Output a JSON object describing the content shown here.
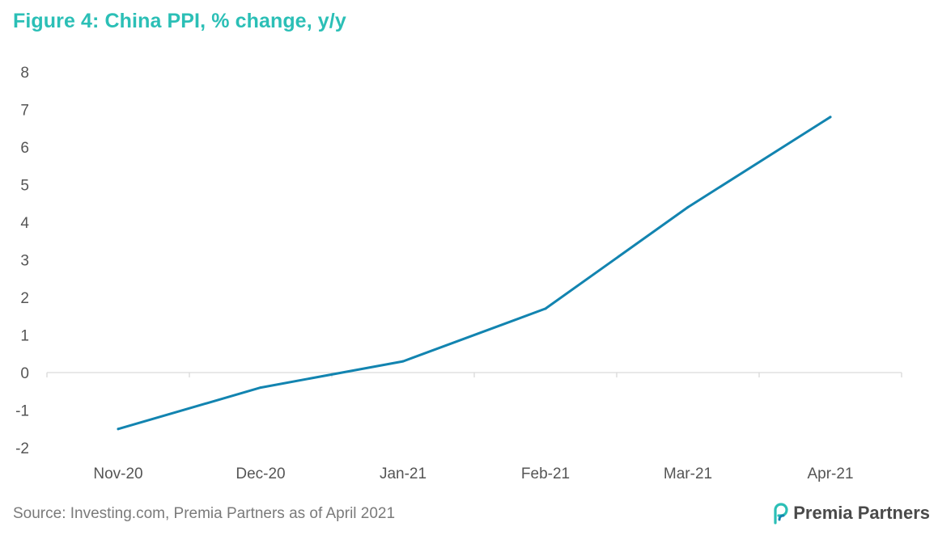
{
  "title": "Figure 4: China PPI, % change, y/y",
  "source": "Source: Investing.com, Premia Partners as of April 2021",
  "logo": {
    "text": "Premia Partners",
    "icon": "premia-partners-logo-icon"
  },
  "colors": {
    "title": "#2bbfb6",
    "series_line": "#1284b0",
    "axis": "#d9d9d9",
    "tick_text": "#555555",
    "logo_icon": "#2bbfb6"
  },
  "chart_data": {
    "type": "line",
    "title": "Figure 4: China PPI, % change, y/y",
    "xlabel": "",
    "ylabel": "",
    "categories": [
      "Nov-20",
      "Dec-20",
      "Jan-21",
      "Feb-21",
      "Mar-21",
      "Apr-21"
    ],
    "series": [
      {
        "values": [
          -1.5,
          -0.4,
          0.3,
          1.7,
          4.4,
          6.8
        ]
      }
    ],
    "ylim": [
      -2,
      8
    ],
    "yticks": [
      8,
      7,
      6,
      5,
      4,
      3,
      2,
      1,
      0,
      -1,
      -2
    ],
    "grid": false,
    "legend": "none"
  }
}
